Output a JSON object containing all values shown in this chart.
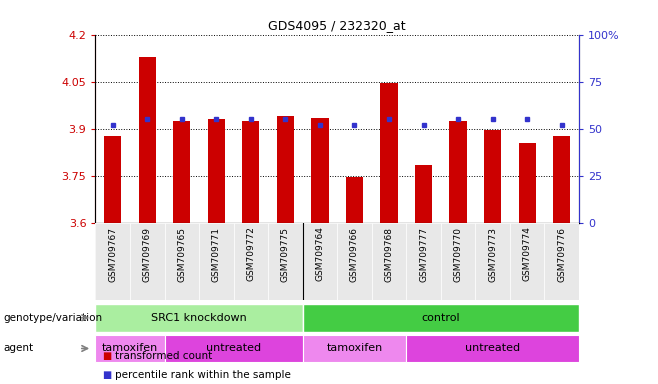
{
  "title": "GDS4095 / 232320_at",
  "samples": [
    "GSM709767",
    "GSM709769",
    "GSM709765",
    "GSM709771",
    "GSM709772",
    "GSM709775",
    "GSM709764",
    "GSM709766",
    "GSM709768",
    "GSM709777",
    "GSM709770",
    "GSM709773",
    "GSM709774",
    "GSM709776"
  ],
  "bar_values": [
    3.875,
    4.13,
    3.925,
    3.93,
    3.925,
    3.94,
    3.935,
    3.745,
    4.045,
    3.785,
    3.925,
    3.895,
    3.855,
    3.875
  ],
  "dot_values": [
    52,
    55,
    55,
    55,
    55,
    55,
    52,
    52,
    55,
    52,
    55,
    55,
    55,
    52
  ],
  "ylim_left": [
    3.6,
    4.2
  ],
  "ylim_right": [
    0,
    100
  ],
  "yticks_left": [
    3.6,
    3.75,
    3.9,
    4.05,
    4.2
  ],
  "yticks_right": [
    0,
    25,
    50,
    75,
    100
  ],
  "ytick_labels_right": [
    "0",
    "25",
    "50",
    "75",
    "100%"
  ],
  "bar_color": "#cc0000",
  "dot_color": "#3333cc",
  "bar_bottom": 3.6,
  "groups": [
    {
      "label": "SRC1 knockdown",
      "start": 0,
      "end": 6,
      "color": "#aaeea0"
    },
    {
      "label": "control",
      "start": 6,
      "end": 14,
      "color": "#44cc44"
    }
  ],
  "agents": [
    {
      "label": "tamoxifen",
      "start": 0,
      "end": 2,
      "color": "#ee88ee"
    },
    {
      "label": "untreated",
      "start": 2,
      "end": 6,
      "color": "#dd44dd"
    },
    {
      "label": "tamoxifen",
      "start": 6,
      "end": 9,
      "color": "#ee88ee"
    },
    {
      "label": "untreated",
      "start": 9,
      "end": 14,
      "color": "#dd44dd"
    }
  ],
  "legend_items": [
    {
      "label": "transformed count",
      "color": "#cc0000",
      "marker": "s"
    },
    {
      "label": "percentile rank within the sample",
      "color": "#3333cc",
      "marker": "s"
    }
  ],
  "genotype_label": "genotype/variation",
  "agent_label": "agent",
  "separator_index": 6
}
